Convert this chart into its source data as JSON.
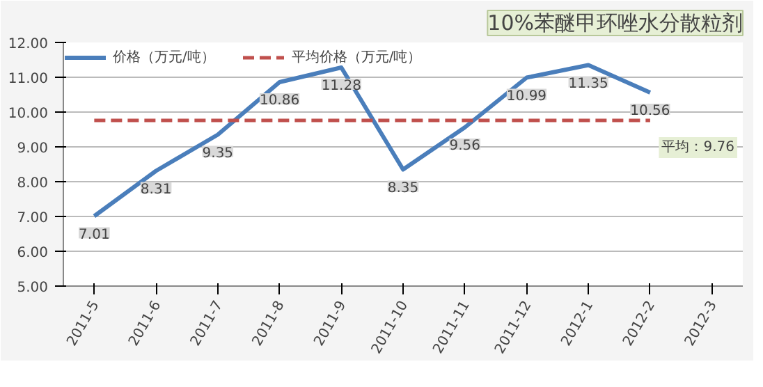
{
  "chart_data": {
    "type": "line",
    "title": "10%苯醚甲环唑水分散粒剂",
    "categories": [
      "2011-5",
      "2011-6",
      "2011-7",
      "2011-8",
      "2011-9",
      "2011-10",
      "2011-11",
      "2011-12",
      "2012-1",
      "2012-2",
      "2012-3"
    ],
    "series": [
      {
        "name": "价格（万元/吨）",
        "color": "#4a7ebb",
        "line_style": "solid",
        "data_labels": true,
        "values": [
          7.01,
          8.31,
          9.35,
          10.86,
          11.28,
          8.35,
          9.56,
          10.99,
          11.35,
          10.56,
          null
        ]
      },
      {
        "name": "平均价格（万元/吨）",
        "color": "#c0504d",
        "line_style": "dashed",
        "values": [
          9.76,
          9.76,
          9.76,
          9.76,
          9.76,
          9.76,
          9.76,
          9.76,
          9.76,
          9.76,
          null
        ]
      }
    ],
    "annotations": [
      "平均：9.76"
    ],
    "ylim": [
      5,
      12
    ],
    "yticks": [
      {
        "value": 5,
        "label": "5.00"
      },
      {
        "value": 6,
        "label": "6.00"
      },
      {
        "value": 7,
        "label": "7.00"
      },
      {
        "value": 8,
        "label": "8.00"
      },
      {
        "value": 9,
        "label": "9.00"
      },
      {
        "value": 10,
        "label": "10.00"
      },
      {
        "value": 11,
        "label": "11.00"
      },
      {
        "value": 12,
        "label": "12.00"
      }
    ],
    "grid": "y",
    "legend": "top",
    "marker": "none"
  }
}
